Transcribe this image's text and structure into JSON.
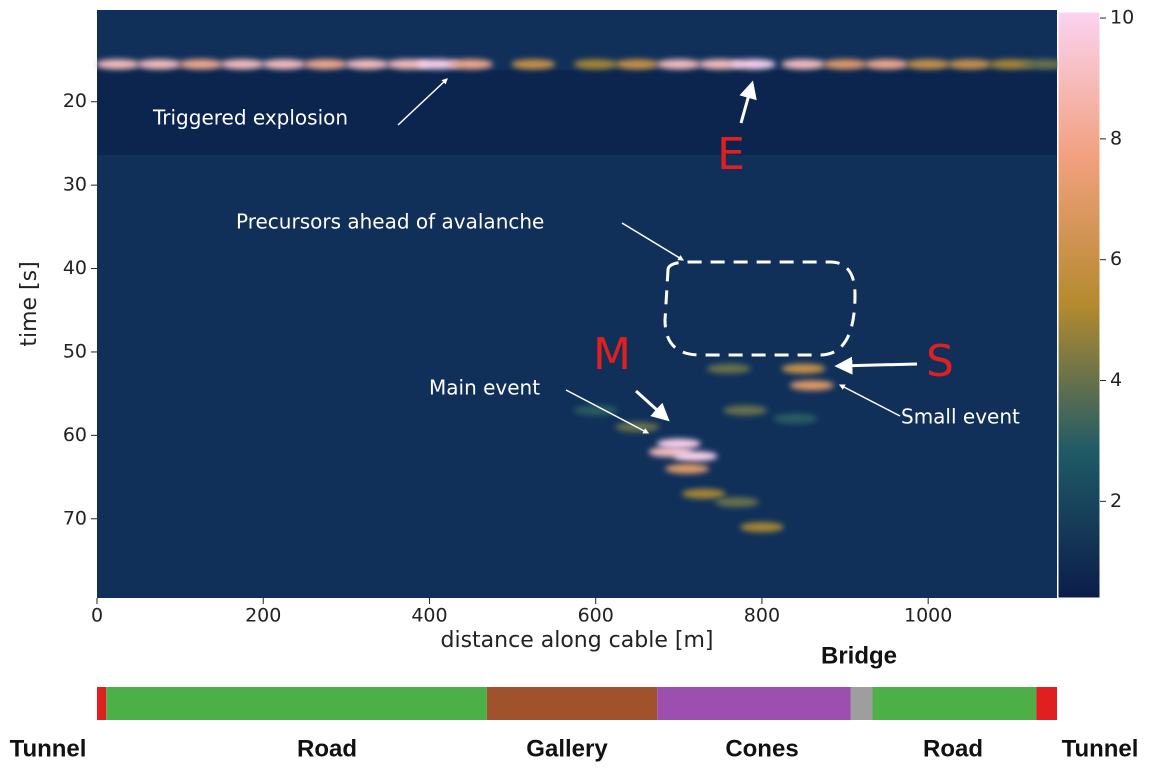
{
  "chart_data": {
    "type": "heatmap",
    "xlabel": "distance along cable [m]",
    "ylabel": "time [s]",
    "xlim": [
      0,
      1155
    ],
    "xticks": [
      0,
      200,
      400,
      600,
      800,
      1000
    ],
    "ylim": [
      79.5,
      9
    ],
    "yticks": [
      20,
      30,
      40,
      50,
      60,
      70
    ],
    "clim": [
      0.4,
      10.1
    ],
    "cticks": [
      2,
      4,
      6,
      8,
      10
    ],
    "colormap": [
      "#0b1d4a",
      "#1f5a66",
      "#b48a2e",
      "#f2a07e",
      "#fbd3f1"
    ],
    "x": [
      25,
      75,
      125,
      175,
      225,
      275,
      325,
      375,
      410,
      450,
      525,
      600,
      650,
      700,
      750,
      790,
      850,
      900,
      950,
      1000,
      1050,
      1100,
      1140,
      600,
      650,
      690,
      700,
      720,
      710,
      730,
      760,
      770,
      780,
      800,
      840,
      850,
      860
    ],
    "y": [
      15.5,
      15.5,
      15.5,
      15.5,
      15.5,
      15.5,
      15.5,
      15.5,
      15.5,
      15.5,
      15.5,
      15.5,
      15.5,
      15.5,
      15.5,
      15.5,
      15.5,
      15.5,
      15.5,
      15.5,
      15.5,
      15.5,
      15.5,
      57,
      59,
      62,
      61,
      62.5,
      64,
      67,
      52,
      68,
      57,
      71,
      58,
      52,
      54
    ],
    "values": [
      9,
      9,
      8,
      9,
      9,
      8,
      9,
      9,
      10,
      8,
      6,
      5,
      6,
      9,
      9,
      10,
      9,
      7,
      8,
      6,
      6,
      5,
      4,
      3,
      4,
      9,
      10,
      10,
      7,
      5,
      4,
      4,
      4,
      5,
      3,
      6,
      7
    ],
    "annotations": {
      "explosion": "Triggered explosion",
      "e": "E",
      "precursors": "Precursors ahead of avalanche",
      "m": "M",
      "main": "Main event",
      "s": "S",
      "small": "Small event"
    },
    "sections": {
      "names": [
        "Tunnel",
        "Road",
        "Gallery",
        "Cones",
        "Bridge",
        "Road",
        "Tunnel"
      ],
      "colors": [
        "#e02020",
        "#4caf48",
        "#a0522d",
        "#9c4fae",
        "#9e9e9e",
        "#4caf48",
        "#e02020"
      ],
      "bounds": [
        0,
        11,
        469,
        674,
        907,
        933,
        1130,
        1155
      ]
    }
  }
}
